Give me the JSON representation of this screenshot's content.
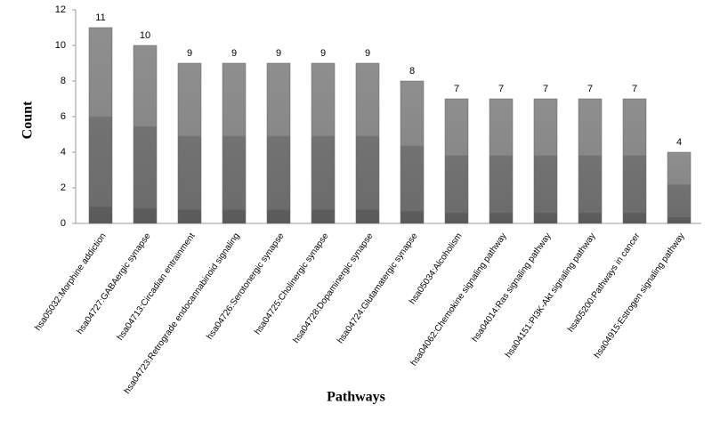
{
  "chart_data": {
    "type": "bar",
    "categories": [
      "hsa05032:Morphine addiction",
      "hsa04727:GABAergic synapse",
      "hsa04713:Circadian entrainment",
      "hsa04723:Retrograde endocannabinoid signaling",
      "hsa04726:Serotonergic synapse",
      "hsa04725:Cholinergic synapse",
      "hsa04728:Dopaminergic synapse",
      "hsa04724:Glutamatergic synapse",
      "hsa05034:Alcoholism",
      "hsa04062:Chemokine signaling pathway",
      "hsa04014:Ras signaling pathway",
      "hsa04151:PI3K-Akt signaling pathway",
      "hsa05200:Pathways in cancer",
      "hsa04915:Estrogen signaling pathway"
    ],
    "values": [
      11,
      10,
      9,
      9,
      9,
      9,
      9,
      8,
      7,
      7,
      7,
      7,
      7,
      4
    ],
    "color": "#808080",
    "x_label": "Pathways",
    "y_label": "Count",
    "ylim": [
      0,
      12
    ],
    "yticks": [
      0,
      2,
      4,
      6,
      8,
      10,
      12
    ],
    "grid": false
  }
}
